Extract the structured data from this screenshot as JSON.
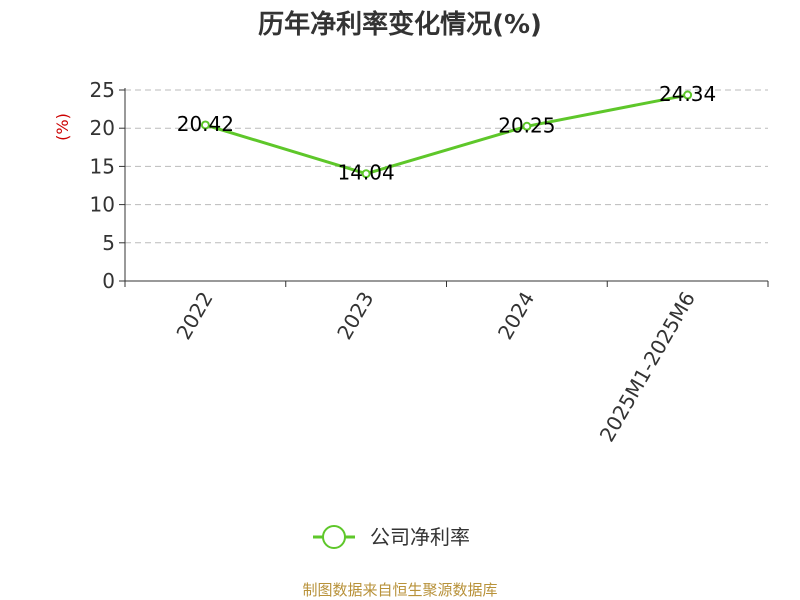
{
  "chart_data": {
    "type": "line",
    "title": "历年净利率变化情况(%)",
    "ylabel": "(%)",
    "xlabel": "",
    "categories": [
      "2022",
      "2023",
      "2024",
      "2025M1-2025M6"
    ],
    "series": [
      {
        "name": "公司净利率",
        "values": [
          20.42,
          14.04,
          20.25,
          24.34
        ],
        "labels": [
          "20.42",
          "14.04",
          "20.25",
          "24.34"
        ]
      }
    ],
    "ylim": [
      0,
      25
    ],
    "yticks": [
      "0",
      "5",
      "10",
      "15",
      "20",
      "25"
    ],
    "grid": true,
    "legend": "bottom-center",
    "colors": {
      "line": "#5ec72a",
      "grid": "#bbbbbb",
      "axis": "#333333",
      "ylabel": "#cc0000"
    }
  },
  "footer": {
    "source": "制图数据来自恒生聚源数据库"
  }
}
